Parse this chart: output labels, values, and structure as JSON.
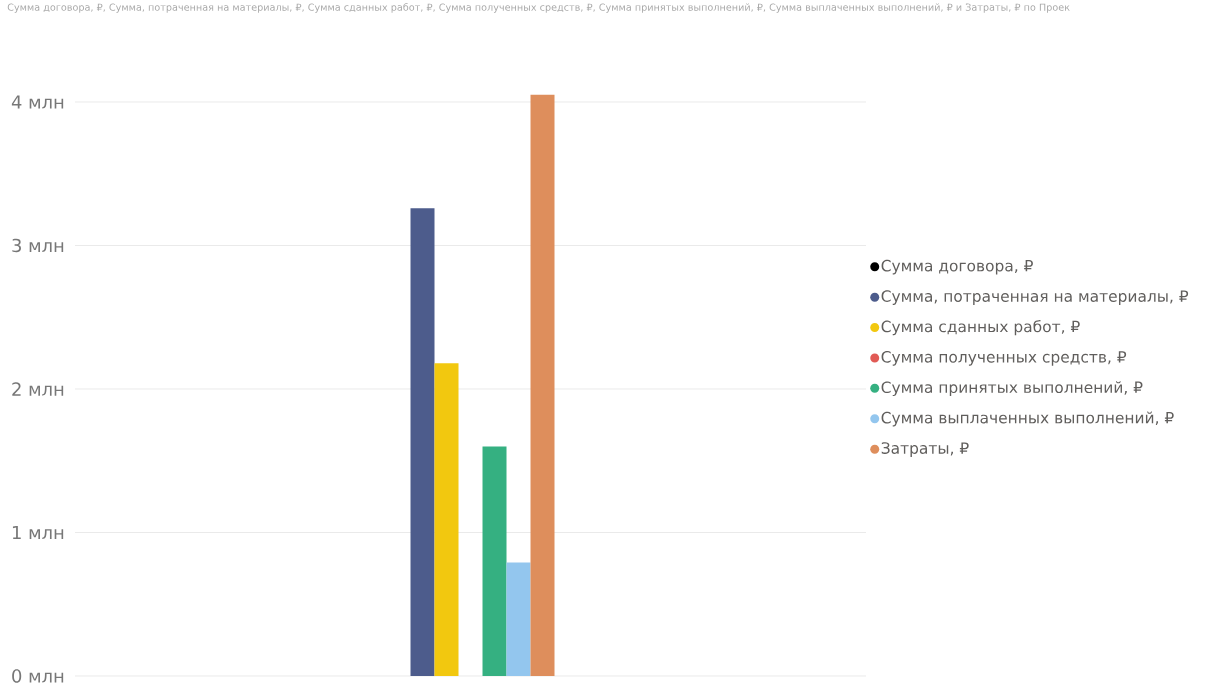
{
  "chart_data": {
    "type": "bar",
    "title": "Сумма договора, ₽, Сумма, потраченная на материалы, ₽, Сумма сданных работ, ₽, Сумма полученных средств, ₽, Сумма принятых выполнений, ₽, Сумма выплаченных выполнений, ₽ и Затраты, ₽ по Проек",
    "categories": [
      null
    ],
    "series": [
      {
        "name": "Сумма договора, ₽",
        "color": "#000000",
        "values": [
          null
        ]
      },
      {
        "name": "Сумма, потраченная на материалы, ₽",
        "color": "#4D5C8C",
        "values": [
          3.26
        ]
      },
      {
        "name": "Сумма сданных работ, ₽",
        "color": "#F2C80F",
        "values": [
          2.18
        ]
      },
      {
        "name": "Сумма полученных средств, ₽",
        "color": "#E15A55",
        "values": [
          null
        ]
      },
      {
        "name": "Сумма принятых выполнений, ₽",
        "color": "#35B081",
        "values": [
          1.6
        ]
      },
      {
        "name": "Сумма выплаченных выполнений, ₽",
        "color": "#93C6EE",
        "values": [
          0.79
        ]
      },
      {
        "name": "Затраты, ₽",
        "color": "#DE8E5C",
        "values": [
          4.05
        ]
      }
    ],
    "ylim": [
      0,
      4.05
    ],
    "yticks": [
      {
        "value": 0,
        "label": "0 млн"
      },
      {
        "value": 1,
        "label": "1 млн"
      },
      {
        "value": 2,
        "label": "2 млн"
      },
      {
        "value": 3,
        "label": "3 млн"
      },
      {
        "value": 4,
        "label": "4 млн"
      }
    ],
    "grid": "y",
    "legend": "right",
    "tick_labels": "y"
  }
}
